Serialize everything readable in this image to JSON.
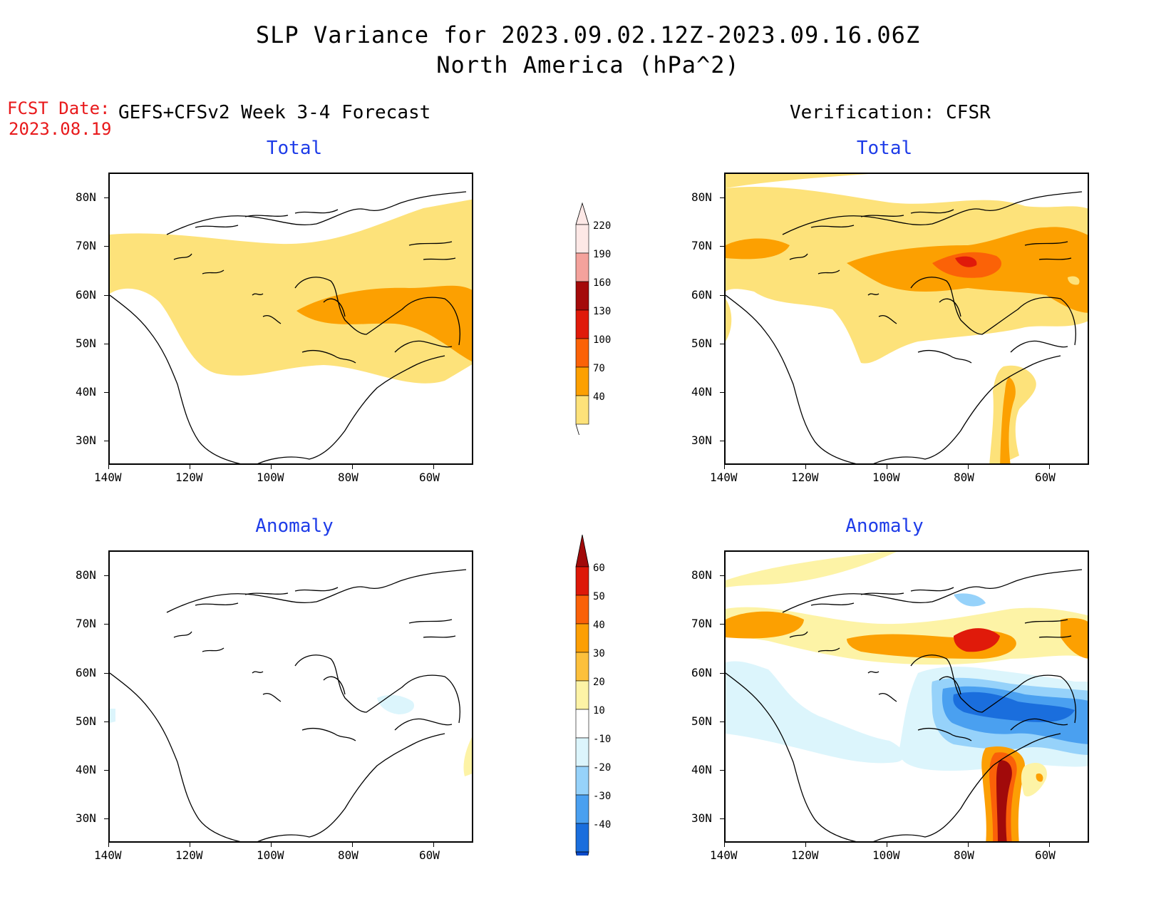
{
  "title": {
    "line1": "SLP Variance for 2023.09.02.12Z-2023.09.16.06Z",
    "line2": "North America (hPa^2)"
  },
  "fcst_date": {
    "label": "FCST Date:",
    "date": "2023.08.19"
  },
  "left_header": "GEFS+CFSv2 Week 3-4 Forecast",
  "right_header": "Verification: CFSR",
  "panel_titles": {
    "top_left": "Total",
    "top_right": "Total",
    "bottom_left": "Anomaly",
    "bottom_right": "Anomaly"
  },
  "axes": {
    "lat_labels": [
      "80N",
      "70N",
      "60N",
      "50N",
      "40N",
      "30N"
    ],
    "lon_labels": [
      "140W",
      "120W",
      "100W",
      "80W",
      "60W"
    ]
  },
  "total_colorbar": {
    "labels": [
      "220",
      "190",
      "160",
      "130",
      "100",
      "70",
      "40"
    ],
    "colors": [
      "#fde8e6",
      "#f4a29c",
      "#a40a0a",
      "#e01a0a",
      "#fb6207",
      "#fca001",
      "#fde27a"
    ]
  },
  "anomaly_colorbar": {
    "labels": [
      "60",
      "50",
      "40",
      "30",
      "20",
      "10",
      "-10",
      "-20",
      "-30",
      "-40"
    ],
    "colors": [
      "#a10a0a",
      "#dd1808",
      "#fa6108",
      "#fc9f05",
      "#fcc03c",
      "#fdf3a6",
      "#ffffff",
      "#dcf5fc",
      "#96d2fa",
      "#4aa0f0",
      "#1a6edd",
      "#0b4bcc"
    ]
  }
}
